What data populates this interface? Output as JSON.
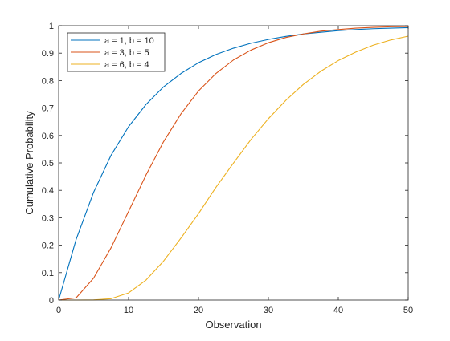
{
  "chart_data": {
    "type": "line",
    "title": "",
    "xlabel": "Observation",
    "ylabel": "Cumulative Probability",
    "xlim": [
      0,
      50
    ],
    "ylim": [
      0,
      1
    ],
    "xticks": [
      "0",
      "10",
      "20",
      "30",
      "40",
      "50"
    ],
    "yticks": [
      "0",
      "0.1",
      "0.2",
      "0.3",
      "0.4",
      "0.5",
      "0.6",
      "0.7",
      "0.8",
      "0.9",
      "1"
    ],
    "grid": false,
    "legend_position": "top-left",
    "x": [
      0,
      2.5,
      5,
      7.5,
      10,
      12.5,
      15,
      17.5,
      20,
      22.5,
      25,
      27.5,
      30,
      32.5,
      35,
      37.5,
      40,
      42.5,
      45,
      47.5,
      50
    ],
    "series": [
      {
        "name": "a = 1, b = 10",
        "color": "#0072BD",
        "values": [
          0,
          0.221,
          0.393,
          0.528,
          0.632,
          0.713,
          0.777,
          0.826,
          0.865,
          0.895,
          0.918,
          0.936,
          0.95,
          0.961,
          0.97,
          0.976,
          0.982,
          0.986,
          0.989,
          0.991,
          0.993
        ]
      },
      {
        "name": "a = 3, b = 5",
        "color": "#D95319",
        "values": [
          0,
          0.008,
          0.08,
          0.191,
          0.323,
          0.456,
          0.577,
          0.679,
          0.762,
          0.826,
          0.875,
          0.911,
          0.938,
          0.957,
          0.97,
          0.98,
          0.986,
          0.991,
          0.994,
          0.996,
          0.997
        ]
      },
      {
        "name": "a = 6, b = 4",
        "color": "#EDB120",
        "values": [
          0,
          0,
          0.0004,
          0.005,
          0.026,
          0.073,
          0.142,
          0.226,
          0.315,
          0.411,
          0.499,
          0.585,
          0.661,
          0.728,
          0.786,
          0.834,
          0.873,
          0.904,
          0.929,
          0.948,
          0.962
        ]
      }
    ]
  }
}
